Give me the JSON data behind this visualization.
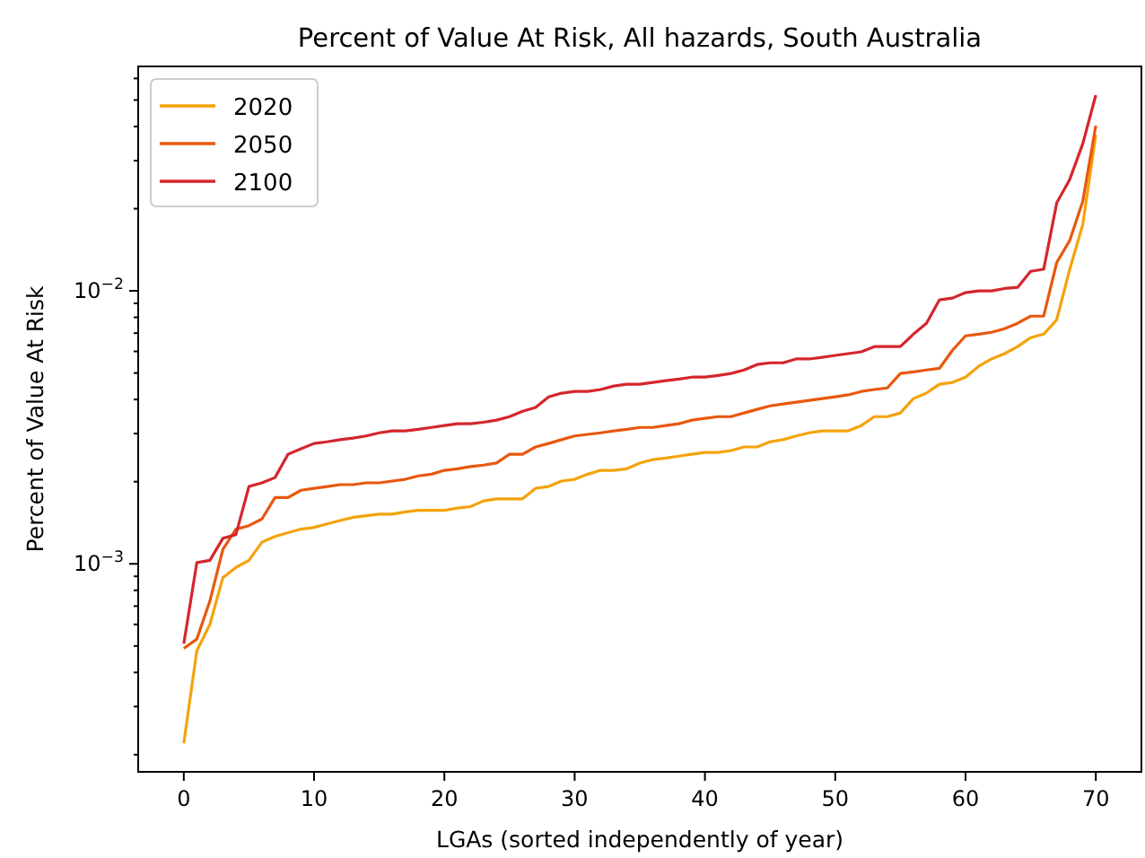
{
  "chart_data": {
    "type": "line",
    "title": "Percent of Value At Risk, All hazards, South Australia",
    "xlabel": "LGAs (sorted independently of year)",
    "ylabel": "Percent of Value At Risk",
    "x": [
      0,
      1,
      2,
      3,
      4,
      5,
      6,
      7,
      8,
      9,
      10,
      11,
      12,
      13,
      14,
      15,
      16,
      17,
      18,
      19,
      20,
      21,
      22,
      23,
      24,
      25,
      26,
      27,
      28,
      29,
      30,
      31,
      32,
      33,
      34,
      35,
      36,
      37,
      38,
      39,
      40,
      41,
      42,
      43,
      44,
      45,
      46,
      47,
      48,
      49,
      50,
      51,
      52,
      53,
      54,
      55,
      56,
      57,
      58,
      59,
      60,
      61,
      62,
      63,
      64,
      65,
      66,
      67,
      68,
      69,
      70
    ],
    "log": "y",
    "xlim": [
      -3.5,
      73.5
    ],
    "ylim": [
      0.000173,
      0.0664
    ],
    "xticks": [
      0,
      10,
      20,
      30,
      40,
      50,
      60,
      70
    ],
    "yticks": [
      {
        "value": 0.0002,
        "label": null
      },
      {
        "value": 0.0003,
        "label": null
      },
      {
        "value": 0.0004,
        "label": null
      },
      {
        "value": 0.0005,
        "label": null
      },
      {
        "value": 0.0006,
        "label": null
      },
      {
        "value": 0.0007,
        "label": null
      },
      {
        "value": 0.0008,
        "label": null
      },
      {
        "value": 0.0009,
        "label": null
      },
      {
        "value": 0.001,
        "label": "10$^{−3}$"
      },
      {
        "value": 0.002,
        "label": null
      },
      {
        "value": 0.003,
        "label": null
      },
      {
        "value": 0.004,
        "label": null
      },
      {
        "value": 0.005,
        "label": null
      },
      {
        "value": 0.006,
        "label": null
      },
      {
        "value": 0.007,
        "label": null
      },
      {
        "value": 0.008,
        "label": null
      },
      {
        "value": 0.009,
        "label": null
      },
      {
        "value": 0.01,
        "label": "10$^{−2}$"
      },
      {
        "value": 0.02,
        "label": null
      },
      {
        "value": 0.03,
        "label": null
      },
      {
        "value": 0.04,
        "label": null
      },
      {
        "value": 0.05,
        "label": null
      },
      {
        "value": 0.06,
        "label": null
      }
    ],
    "legend": "top left",
    "grid": false,
    "series": [
      {
        "name": "2020",
        "color": "#f4a30c",
        "values": [
          0.00022,
          0.00048,
          0.0006,
          0.00089,
          0.00097,
          0.00103,
          0.0012,
          0.00126,
          0.0013,
          0.00134,
          0.00136,
          0.0014,
          0.00144,
          0.00148,
          0.0015,
          0.00152,
          0.00152,
          0.00155,
          0.00157,
          0.00157,
          0.00157,
          0.0016,
          0.00162,
          0.0017,
          0.00173,
          0.00173,
          0.00173,
          0.00189,
          0.00192,
          0.00201,
          0.00204,
          0.00213,
          0.0022,
          0.0022,
          0.00223,
          0.00234,
          0.00241,
          0.00244,
          0.00248,
          0.00252,
          0.00256,
          0.00256,
          0.0026,
          0.00268,
          0.00268,
          0.0028,
          0.00285,
          0.00294,
          0.00302,
          0.00307,
          0.00307,
          0.00307,
          0.00321,
          0.00346,
          0.00346,
          0.00357,
          0.00403,
          0.00422,
          0.00455,
          0.00462,
          0.00483,
          0.00529,
          0.00563,
          0.00589,
          0.00625,
          0.00674,
          0.00694,
          0.00784,
          0.012,
          0.0175,
          0.0373
        ]
      },
      {
        "name": "2050",
        "color": "#e8580e",
        "values": [
          0.00049,
          0.00053,
          0.00073,
          0.00113,
          0.00134,
          0.00138,
          0.00146,
          0.00175,
          0.00175,
          0.00186,
          0.00189,
          0.00192,
          0.00195,
          0.00195,
          0.00198,
          0.00198,
          0.00201,
          0.00204,
          0.0021,
          0.00213,
          0.0022,
          0.00223,
          0.00227,
          0.0023,
          0.00234,
          0.00252,
          0.00252,
          0.00268,
          0.00276,
          0.00285,
          0.00294,
          0.00298,
          0.00302,
          0.00307,
          0.00311,
          0.00316,
          0.00316,
          0.00321,
          0.00326,
          0.00336,
          0.00341,
          0.00346,
          0.00346,
          0.00357,
          0.00368,
          0.00379,
          0.00385,
          0.00391,
          0.00397,
          0.00403,
          0.00409,
          0.00416,
          0.00428,
          0.00435,
          0.00441,
          0.00498,
          0.00505,
          0.00513,
          0.0052,
          0.00606,
          0.00684,
          0.00694,
          0.00705,
          0.00727,
          0.00761,
          0.00808,
          0.00808,
          0.0127,
          0.0153,
          0.0213,
          0.0403
        ]
      },
      {
        "name": "2100",
        "color": "#d4262c",
        "values": [
          0.00051,
          0.00101,
          0.00103,
          0.00124,
          0.00128,
          0.00192,
          0.00198,
          0.00207,
          0.00252,
          0.00264,
          0.00276,
          0.0028,
          0.00285,
          0.00289,
          0.00294,
          0.00302,
          0.00307,
          0.00307,
          0.00311,
          0.00316,
          0.00321,
          0.00326,
          0.00326,
          0.0033,
          0.00336,
          0.00346,
          0.00362,
          0.00374,
          0.00409,
          0.00422,
          0.00428,
          0.00428,
          0.00435,
          0.00448,
          0.00455,
          0.00455,
          0.00462,
          0.00469,
          0.00475,
          0.00483,
          0.00483,
          0.0049,
          0.00498,
          0.00513,
          0.00537,
          0.00545,
          0.00545,
          0.00563,
          0.00563,
          0.00571,
          0.0058,
          0.00589,
          0.00598,
          0.00625,
          0.00625,
          0.00625,
          0.00694,
          0.00761,
          0.00927,
          0.00941,
          0.00985,
          0.01,
          0.01,
          0.0102,
          0.0103,
          0.0118,
          0.012,
          0.021,
          0.0256,
          0.0346,
          0.0521
        ]
      }
    ]
  }
}
